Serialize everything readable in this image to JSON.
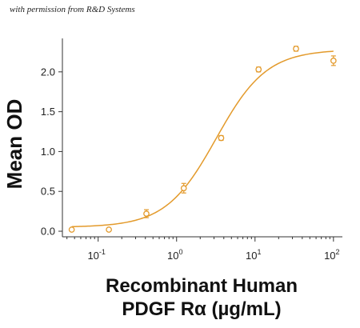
{
  "attribution": "with permission from R&D Systems",
  "colors": {
    "series": "#E39A2B",
    "axis": "#333333"
  },
  "chart_data": {
    "type": "scatter",
    "title": "",
    "ylabel": "Mean OD",
    "xlabel_lines": [
      "Recombinant Human",
      "PDGF Rα (µg/mL)"
    ],
    "xscale": "log",
    "xlim": [
      0.035,
      130
    ],
    "ylim": [
      -0.07,
      2.42
    ],
    "yticks": [
      0.0,
      0.5,
      1.0,
      1.5,
      2.0
    ],
    "ytick_labels": [
      "0.0",
      "0.5",
      "1.0",
      "1.5",
      "2.0"
    ],
    "xticks": [
      0.1,
      1,
      10,
      100
    ],
    "xtick_labels": [
      {
        "base": "10",
        "exp": "-1"
      },
      {
        "base": "10",
        "exp": "0"
      },
      {
        "base": "10",
        "exp": "1"
      },
      {
        "base": "10",
        "exp": "2"
      }
    ],
    "grid": false,
    "series": [
      {
        "points": [
          {
            "x": 0.046,
            "y": 0.02,
            "err": 0.01
          },
          {
            "x": 0.137,
            "y": 0.02,
            "err": 0.01
          },
          {
            "x": 0.412,
            "y": 0.22,
            "err": 0.05
          },
          {
            "x": 1.235,
            "y": 0.54,
            "err": 0.06
          },
          {
            "x": 3.7,
            "y": 1.17,
            "err": 0.03
          },
          {
            "x": 11.1,
            "y": 2.03,
            "err": 0.03
          },
          {
            "x": 33.3,
            "y": 2.29,
            "err": 0.03
          },
          {
            "x": 100,
            "y": 2.14,
            "err": 0.06
          }
        ]
      }
    ],
    "fit": {
      "type": "4PL",
      "bottom": 0.05,
      "top": 2.28,
      "ec50": 3.2,
      "hill": 1.35
    }
  }
}
